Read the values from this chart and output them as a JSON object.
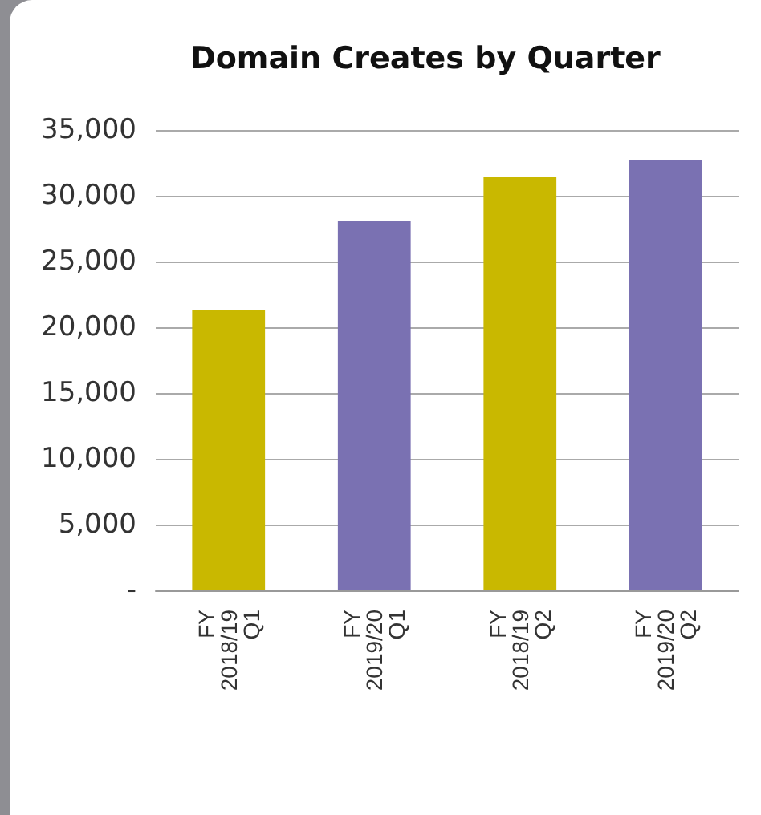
{
  "chart_data": {
    "type": "bar",
    "title": "Domain Creates by Quarter",
    "categories": [
      "FY\n2018/19\nQ1",
      "FY\n2019/20\nQ1",
      "FY\n2018/19\nQ2",
      "FY\n2019/20\nQ2"
    ],
    "values": [
      21300,
      28100,
      31400,
      32700
    ],
    "colors": [
      "#c9b800",
      "#7a71b2",
      "#c9b800",
      "#7a71b2"
    ],
    "ylim": [
      0,
      35000
    ],
    "yticks": [
      {
        "value": 0,
        "label": "-"
      },
      {
        "value": 5000,
        "label": "5,000"
      },
      {
        "value": 10000,
        "label": "10,000"
      },
      {
        "value": 15000,
        "label": "15,000"
      },
      {
        "value": 20000,
        "label": "20,000"
      },
      {
        "value": 25000,
        "label": "25,000"
      },
      {
        "value": 30000,
        "label": "30,000"
      },
      {
        "value": 35000,
        "label": "35,000"
      }
    ],
    "grid": "y"
  }
}
